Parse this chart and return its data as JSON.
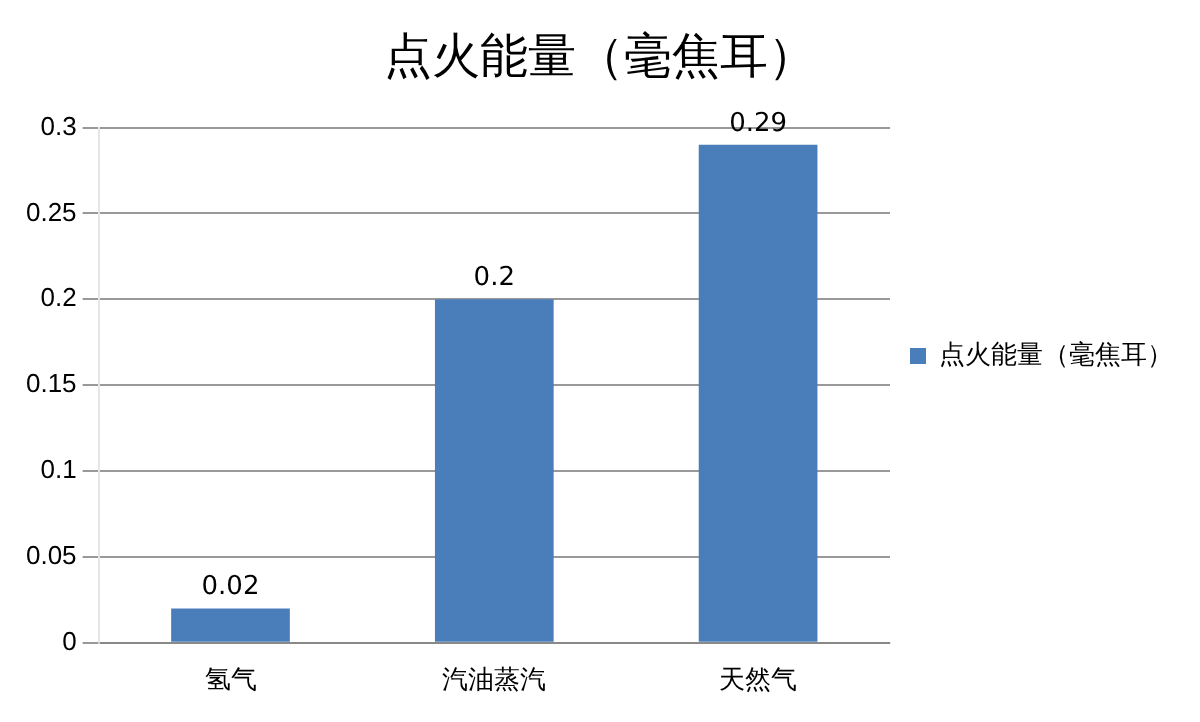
{
  "chart_data": {
    "type": "bar",
    "title": "点火能量（毫焦耳）",
    "categories": [
      "氢气",
      "汽油蒸汽",
      "天然气"
    ],
    "series": [
      {
        "name": "点火能量（毫焦耳）",
        "color": "#4a7ebb",
        "values": [
          0.02,
          0.2,
          0.29
        ]
      }
    ],
    "ylim": [
      0,
      0.3
    ],
    "yticks": [
      0,
      0.05,
      0.1,
      0.15,
      0.2,
      0.25,
      0.3
    ],
    "grid": "y",
    "legend": "right",
    "data_labels": true
  }
}
